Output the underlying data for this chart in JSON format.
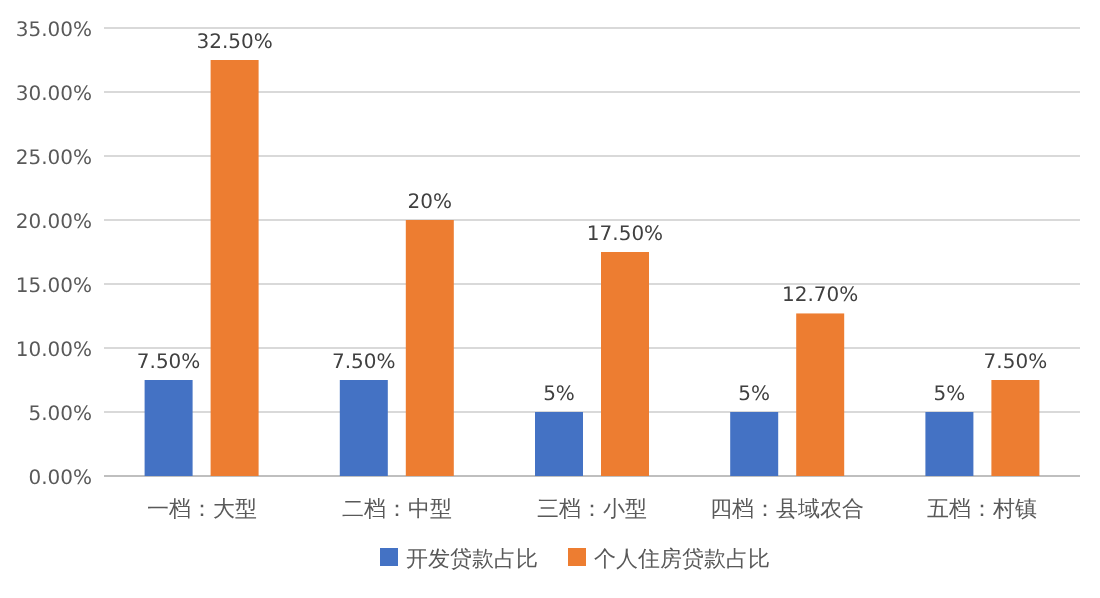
{
  "chart_data": {
    "type": "bar",
    "categories": [
      "一档：大型",
      "二档：中型",
      "三档：小型",
      "四档：县域农合",
      "五档：村镇"
    ],
    "series": [
      {
        "name": "开发贷款占比",
        "color": "#4472c4",
        "values": [
          7.5,
          7.5,
          5,
          5,
          5
        ],
        "value_labels": [
          "7.50%",
          "7.50%",
          "5%",
          "5%",
          "5%"
        ]
      },
      {
        "name": "个人住房贷款占比",
        "color": "#ed7d31",
        "values": [
          32.5,
          20,
          17.5,
          12.7,
          7.5
        ],
        "value_labels": [
          "32.50%",
          "20%",
          "17.50%",
          "12.70%",
          "7.50%"
        ]
      }
    ],
    "ylim": [
      0,
      35
    ],
    "yticks": [
      {
        "value": 0,
        "label": "0.00%"
      },
      {
        "value": 5,
        "label": "5.00%"
      },
      {
        "value": 10,
        "label": "10.00%"
      },
      {
        "value": 15,
        "label": "15.00%"
      },
      {
        "value": 20,
        "label": "20.00%"
      },
      {
        "value": 25,
        "label": "25.00%"
      },
      {
        "value": 30,
        "label": "30.00%"
      },
      {
        "value": 35,
        "label": "35.00%"
      }
    ],
    "grid": "y",
    "legend": "bottom"
  }
}
